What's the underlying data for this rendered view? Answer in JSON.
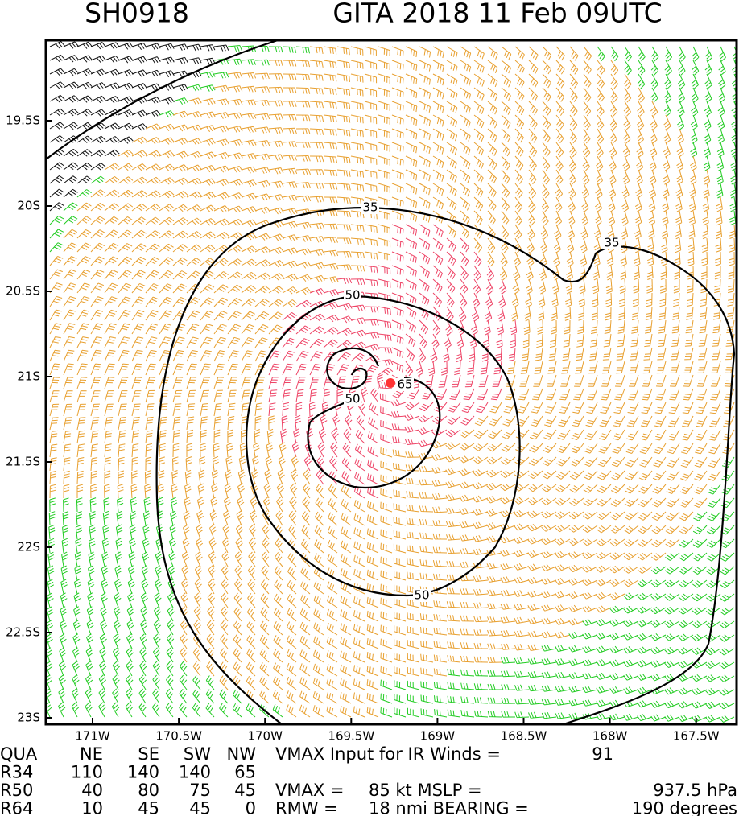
{
  "header": {
    "id": "SH0918",
    "title": "GITA 2018 11 Feb 09UTC"
  },
  "map": {
    "xticks": [
      "171W",
      "170.5W",
      "170W",
      "169.5W",
      "169W",
      "168.5W",
      "168W",
      "167.5W"
    ],
    "yticks": [
      "19.5S",
      "20S",
      "20.5S",
      "21S",
      "21.5S",
      "22S",
      "22.5S",
      "23S"
    ],
    "contour_labels": [
      "35",
      "35",
      "50",
      "50",
      "50",
      "65"
    ]
  },
  "table": {
    "rows": [
      [
        "QUA",
        "NE",
        "SE",
        "SW",
        "NW",
        "VMAX Input for IR Winds =",
        "91"
      ],
      [
        "R34",
        "110",
        "140",
        "140",
        "65"
      ],
      [
        "R50",
        "40",
        "80",
        "75",
        "45",
        "VMAX =",
        "85 kt MSLP =",
        "937.5 hPa"
      ],
      [
        "R64",
        "10",
        "45",
        "45",
        "0",
        "RMW =",
        "18 nmi BEARING =",
        "190 degrees"
      ]
    ]
  }
}
